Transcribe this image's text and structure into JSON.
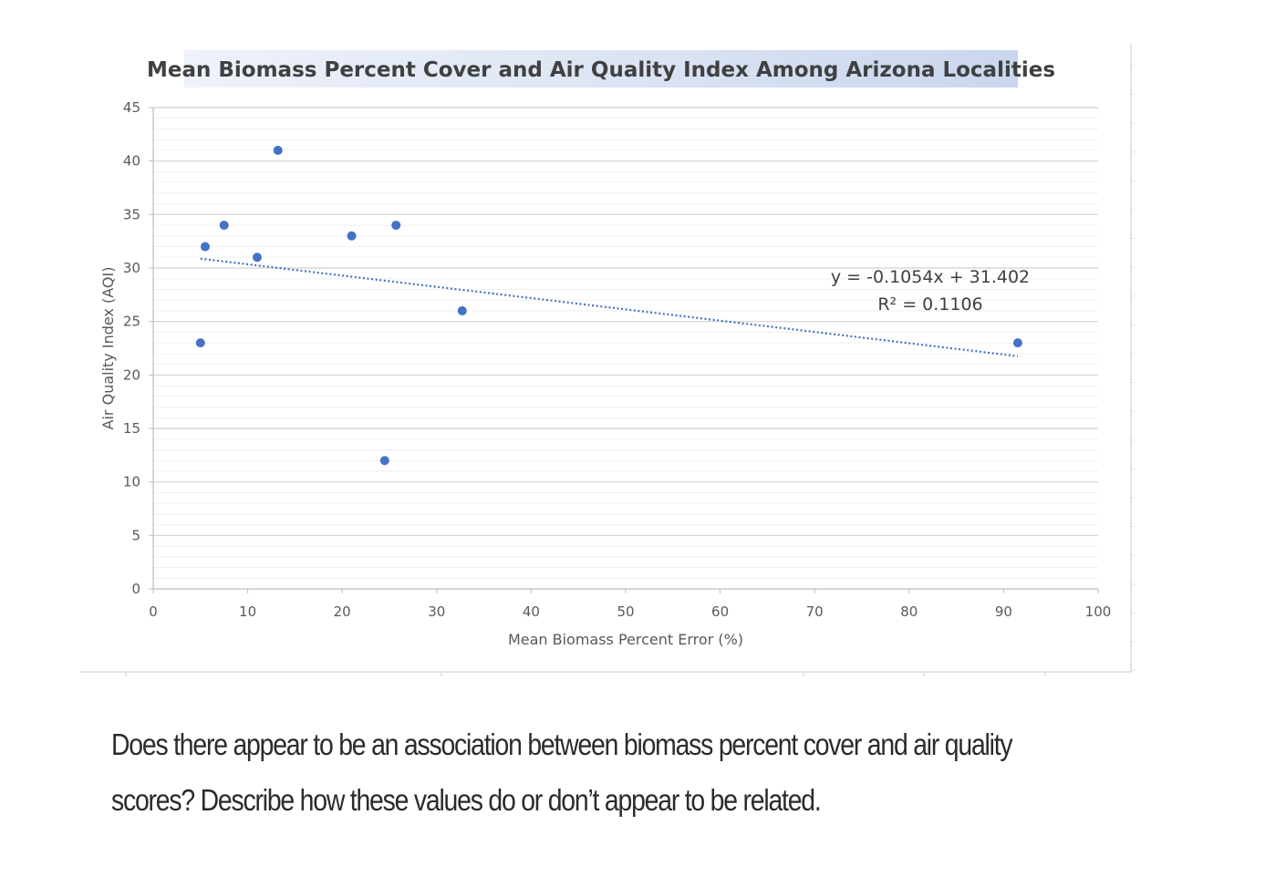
{
  "chart_data": {
    "type": "scatter",
    "title": "Mean Biomass Percent Cover and Air Quality Index Among Arizona Localities",
    "xlabel": "Mean Biomass Percent Error (%)",
    "ylabel": "Air Quality Index (AQI)",
    "xlim": [
      0,
      100
    ],
    "ylim": [
      0,
      45
    ],
    "x_ticks": [
      0,
      10,
      20,
      30,
      40,
      50,
      60,
      70,
      80,
      90,
      100
    ],
    "y_ticks": [
      0,
      5,
      10,
      15,
      20,
      25,
      30,
      35,
      40,
      45
    ],
    "grid": true,
    "series": [
      {
        "name": "AQI",
        "color": "#4472C4",
        "points": [
          {
            "x": 5.0,
            "y": 23
          },
          {
            "x": 5.5,
            "y": 32
          },
          {
            "x": 7.5,
            "y": 34
          },
          {
            "x": 11.0,
            "y": 31
          },
          {
            "x": 13.2,
            "y": 41
          },
          {
            "x": 21.0,
            "y": 33
          },
          {
            "x": 24.5,
            "y": 12
          },
          {
            "x": 25.7,
            "y": 34
          },
          {
            "x": 32.7,
            "y": 26
          },
          {
            "x": 91.5,
            "y": 23
          }
        ]
      }
    ],
    "trendline": {
      "type": "linear",
      "slope": -0.1054,
      "intercept": 31.402,
      "x_range": [
        5.0,
        91.5
      ],
      "equation_label": "y = -0.1054x + 31.402",
      "r2_label": "R² = 0.1106",
      "label_position": "right"
    }
  },
  "question": {
    "line1": "Does there appear to be an association between biomass percent cover and air quality",
    "line2": "scores?  Describe how these values do or don’t appear to be related."
  }
}
